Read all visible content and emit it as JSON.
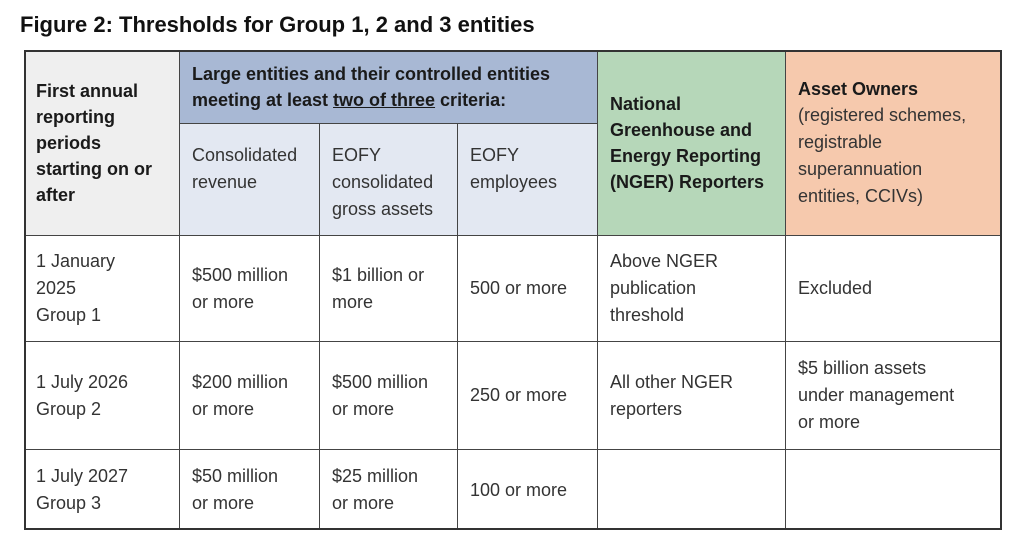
{
  "title": "Figure 2: Thresholds for Group 1, 2 and 3 entities",
  "header": {
    "first_col": [
      "First annual",
      "reporting",
      "periods",
      "starting on or",
      "after"
    ],
    "large_entities_line1": "Large entities and their controlled entities",
    "large_entities_line2_prefix": "meeting at least ",
    "large_entities_line2_underlined": "two of three",
    "large_entities_line2_suffix": " criteria:",
    "sub_revenue": [
      "Consolidated",
      "revenue"
    ],
    "sub_assets": [
      "EOFY",
      "consolidated",
      "gross assets"
    ],
    "sub_employees": [
      "EOFY",
      "employees"
    ],
    "nger": [
      "National",
      "Greenhouse and",
      "Energy Reporting",
      "(NGER) Reporters"
    ],
    "asset_owners_title": "Asset Owners",
    "asset_owners_detail": [
      "(registered schemes,",
      "registrable",
      "superannuation",
      "entities, CCIVs)"
    ]
  },
  "rows": [
    {
      "period": [
        "1 January",
        "2025",
        "Group 1"
      ],
      "revenue": [
        "$500 million",
        "or more"
      ],
      "assets": [
        "$1 billion or",
        "more"
      ],
      "employees": [
        "500 or more"
      ],
      "nger": [
        "Above NGER",
        "publication",
        "threshold"
      ],
      "asset_owners": [
        "Excluded"
      ]
    },
    {
      "period": [
        "1 July 2026",
        "Group 2"
      ],
      "revenue": [
        "$200 million",
        "or more"
      ],
      "assets": [
        "$500 million",
        "or more"
      ],
      "employees": [
        "250 or more"
      ],
      "nger": [
        "All other NGER",
        "reporters"
      ],
      "asset_owners": [
        "$5 billion assets",
        "under management",
        "or more"
      ]
    },
    {
      "period": [
        "1 July 2027",
        "Group 3"
      ],
      "revenue": [
        "$50 million",
        "or more"
      ],
      "assets": [
        "$25 million",
        "or more"
      ],
      "employees": [
        "100 or more"
      ],
      "nger": [],
      "asset_owners": []
    }
  ]
}
